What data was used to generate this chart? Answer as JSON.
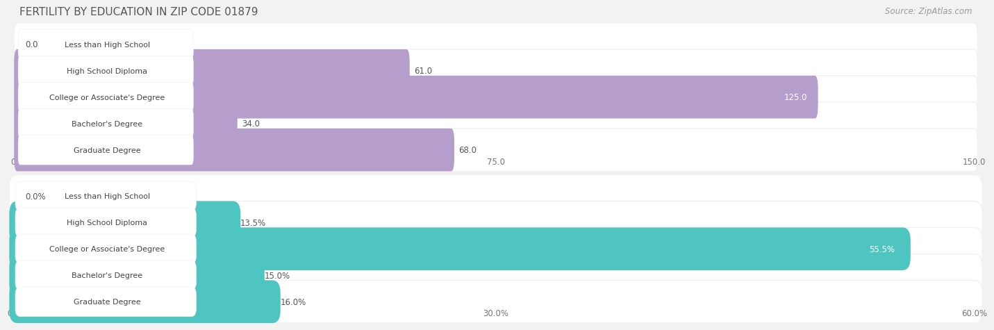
{
  "title": "FERTILITY BY EDUCATION IN ZIP CODE 01879",
  "source": "Source: ZipAtlas.com",
  "top_chart": {
    "categories": [
      "Less than High School",
      "High School Diploma",
      "College or Associate's Degree",
      "Bachelor's Degree",
      "Graduate Degree"
    ],
    "values": [
      0.0,
      61.0,
      125.0,
      34.0,
      68.0
    ],
    "bar_color": "#b59dcc",
    "xlim": [
      0,
      150
    ],
    "xticks": [
      0.0,
      75.0,
      150.0
    ],
    "xtick_labels": [
      "0.0",
      "75.0",
      "150.0"
    ]
  },
  "bottom_chart": {
    "categories": [
      "Less than High School",
      "High School Diploma",
      "College or Associate's Degree",
      "Bachelor's Degree",
      "Graduate Degree"
    ],
    "values": [
      0.0,
      13.5,
      55.5,
      15.0,
      16.0
    ],
    "bar_color": "#4ec5c1",
    "xlim": [
      0,
      60
    ],
    "xticks": [
      0.0,
      30.0,
      60.0
    ],
    "xtick_labels": [
      "0.0%",
      "30.0%",
      "60.0%"
    ]
  },
  "label_fontsize": 8.5,
  "category_fontsize": 8.0,
  "title_fontsize": 11,
  "source_fontsize": 8.5,
  "bg_color": "#f2f2f2",
  "bar_bg_color": "#e2e2e2",
  "white_label_bg": "#ffffff",
  "row_bg_color": "#ffffff"
}
